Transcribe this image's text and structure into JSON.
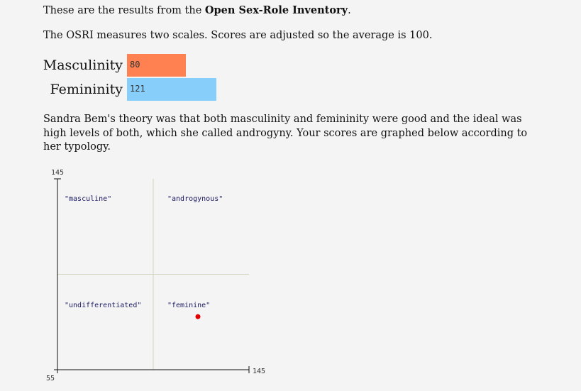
{
  "intro": {
    "prefix": "These are the results from the ",
    "test_name": "Open Sex-Role Inventory",
    "suffix": "."
  },
  "scales_text": "The OSRI measures two scales. Scores are adjusted so the average is 100.",
  "bars": [
    {
      "label": "Masculinity",
      "value": 80,
      "color": "#ff8050"
    },
    {
      "label": "Femininity",
      "value": 121,
      "color": "#87cefa"
    }
  ],
  "bem_text": "Sandra Bem's theory was that both masculinity and femininity were good and the ideal was high levels of both, which she called androgyny. Your scores are graphed below according to her typology.",
  "chart_data": {
    "type": "scatter",
    "x": [
      121
    ],
    "y": [
      80
    ],
    "xlim": [
      55,
      145
    ],
    "ylim": [
      55,
      145
    ],
    "tick_labels": {
      "y_top": "145",
      "origin": "55",
      "x_right": "145"
    },
    "quadrants": {
      "top_left": "\"masculine\"",
      "top_right": "\"androgynous\"",
      "bottom_left": "\"undifferentiated\"",
      "bottom_right": "\"feminine\""
    },
    "point_color": "#e00000",
    "grid_color": "#d0d4bc"
  }
}
